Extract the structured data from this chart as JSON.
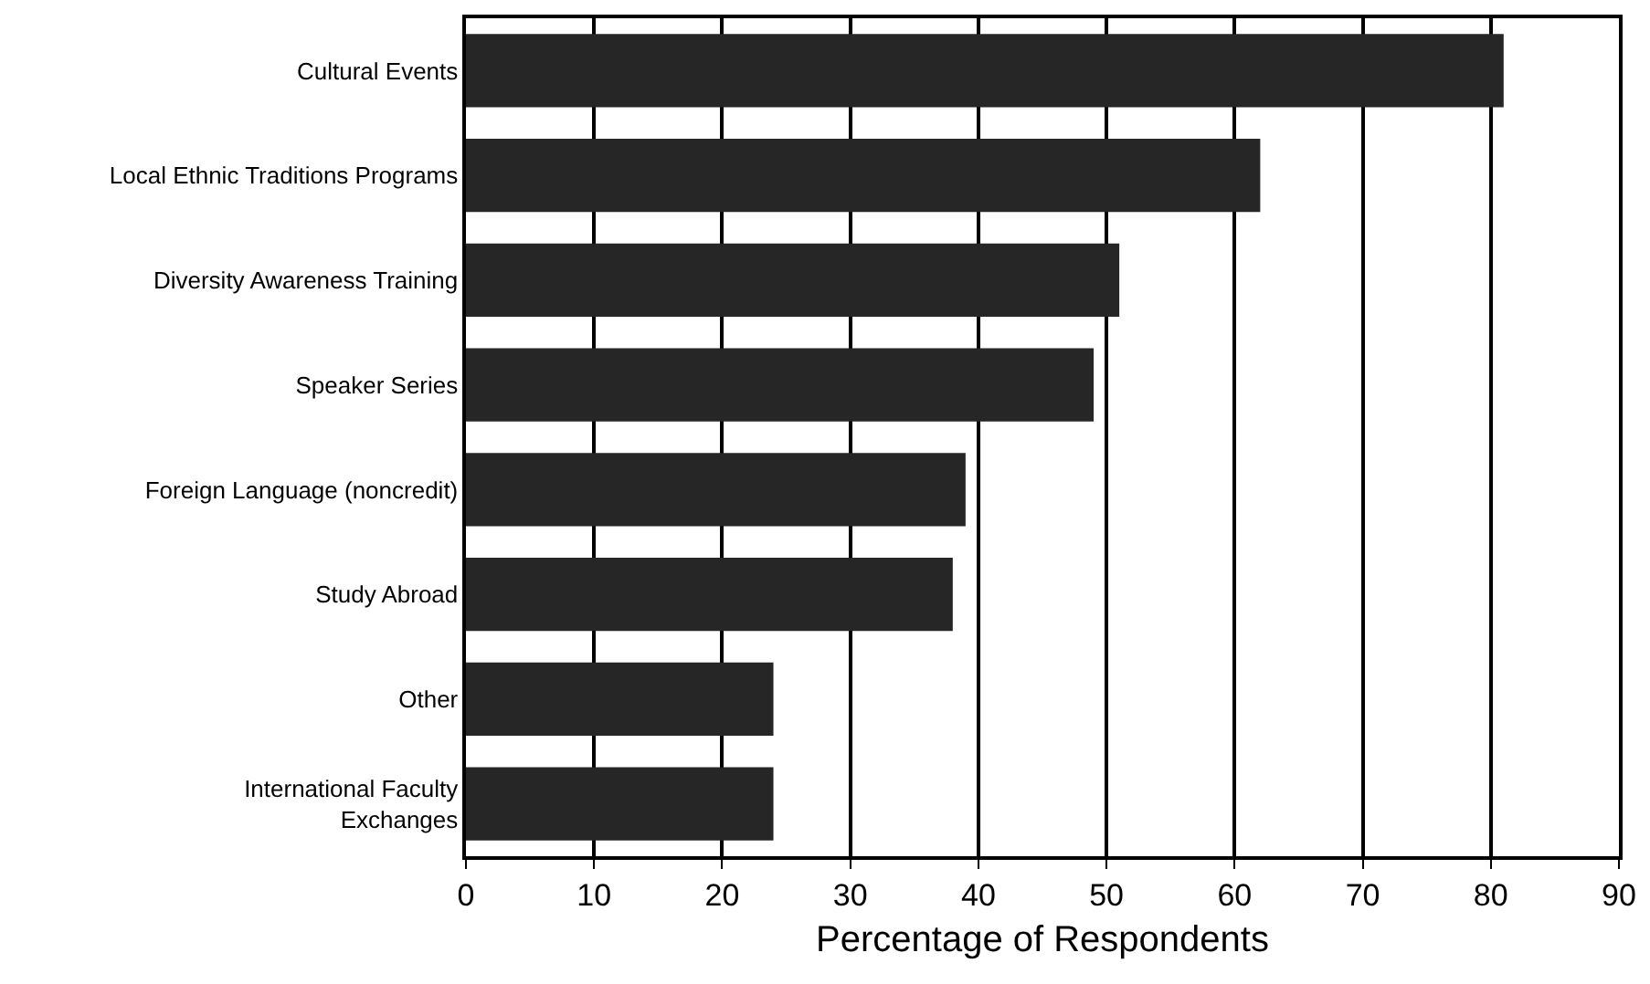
{
  "chart_data": {
    "type": "bar",
    "orientation": "horizontal",
    "xlabel": "Percentage of Respondents",
    "categories": [
      "Cultural Events",
      "Local Ethnic Traditions Programs",
      "Diversity Awareness Training",
      "Speaker Series",
      "Foreign Language (noncredit)",
      "Study Abroad",
      "Other",
      "International Faculty\nExchanges"
    ],
    "values": [
      81,
      62,
      51,
      49,
      39,
      38,
      24,
      24
    ],
    "color": "#262626",
    "xlim": [
      0,
      90
    ],
    "xticks": [
      0,
      10,
      20,
      30,
      40,
      50,
      60,
      70,
      80,
      90
    ],
    "grid": "x"
  }
}
